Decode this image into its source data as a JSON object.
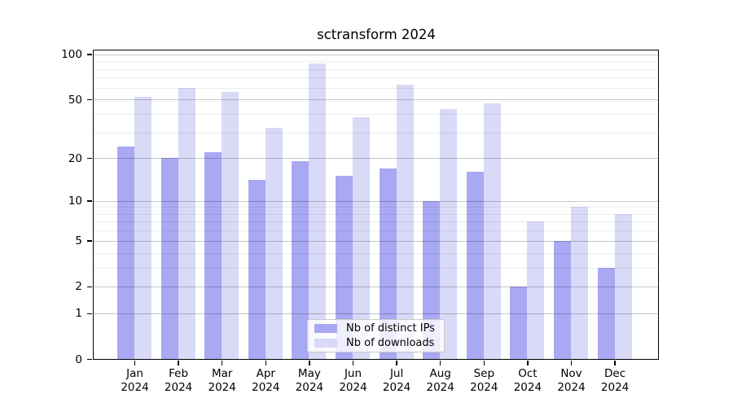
{
  "chart_data": {
    "type": "bar",
    "title": "sctransform 2024",
    "categories": [
      "Jan",
      "Feb",
      "Mar",
      "Apr",
      "May",
      "Jun",
      "Jul",
      "Aug",
      "Sep",
      "Oct",
      "Nov",
      "Dec"
    ],
    "x_tick_year": "2024",
    "series": [
      {
        "name": "Nb of distinct IPs",
        "color": "#a8a8f3",
        "values": [
          24,
          20,
          22,
          14,
          19,
          15,
          17,
          10,
          16,
          2,
          5,
          3
        ]
      },
      {
        "name": "Nb of downloads",
        "color": "#d9d9f8",
        "values": [
          52,
          60,
          56,
          32,
          87,
          38,
          63,
          43,
          47,
          7,
          9,
          8
        ]
      }
    ],
    "yscale": "log1p",
    "ylim": [
      0,
      106
    ],
    "y_major_ticks": [
      100,
      50,
      20,
      10,
      5,
      2,
      1,
      0
    ],
    "y_minor_gridlines": [
      3,
      4,
      6,
      7,
      8,
      9,
      30,
      40,
      60,
      70,
      80,
      90
    ],
    "xlabel": "",
    "ylabel": "",
    "grid": true,
    "legend_position": "lower center"
  }
}
